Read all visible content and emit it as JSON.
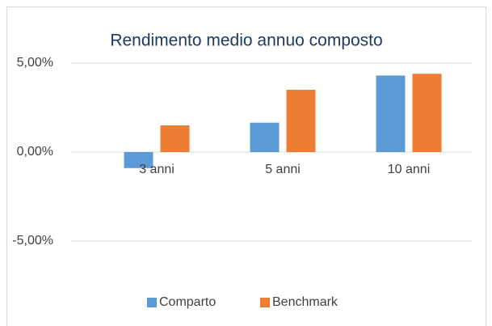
{
  "chart_data": {
    "type": "bar",
    "title": "Rendimento medio annuo composto",
    "categories": [
      "3 anni",
      "5 anni",
      "10 anni"
    ],
    "series": [
      {
        "name": "Comparto",
        "color": "#5b9bd5",
        "values": [
          -0.9,
          1.65,
          4.3
        ]
      },
      {
        "name": "Benchmark",
        "color": "#ed7d31",
        "values": [
          1.5,
          3.5,
          4.4
        ]
      }
    ],
    "ylim": [
      -6.5,
      5.5
    ],
    "yticks": [
      {
        "value": -5,
        "label": "-5,00%"
      },
      {
        "value": 0,
        "label": "0,00%"
      },
      {
        "value": 5,
        "label": "5,00%"
      }
    ],
    "grid": true,
    "legend": "bottom"
  }
}
